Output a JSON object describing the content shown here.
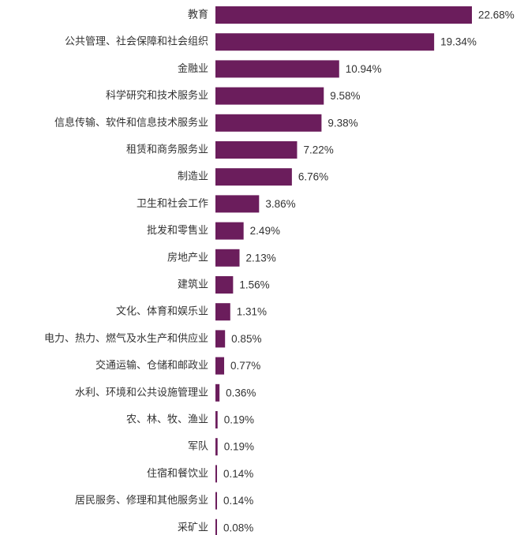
{
  "chart_data": {
    "type": "bar",
    "orientation": "horizontal",
    "bar_color": "#6B1D5C",
    "categories": [
      "教育",
      "公共管理、社会保障和社会组织",
      "金融业",
      "科学研究和技术服务业",
      "信息传输、软件和信息技术服务业",
      "租赁和商务服务业",
      "制造业",
      "卫生和社会工作",
      "批发和零售业",
      "房地产业",
      "建筑业",
      "文化、体育和娱乐业",
      "电力、热力、燃气及水生产和供应业",
      "交通运输、仓储和邮政业",
      "水利、环境和公共设施管理业",
      "农、林、牧、渔业",
      "军队",
      "住宿和餐饮业",
      "居民服务、修理和其他服务业",
      "采矿业"
    ],
    "values": [
      22.68,
      19.34,
      10.94,
      9.58,
      9.38,
      7.22,
      6.76,
      3.86,
      2.49,
      2.13,
      1.56,
      1.31,
      0.85,
      0.77,
      0.36,
      0.19,
      0.19,
      0.14,
      0.14,
      0.08
    ],
    "value_labels": [
      "22.68%",
      "19.34%",
      "10.94%",
      "9.58%",
      "9.38%",
      "7.22%",
      "6.76%",
      "3.86%",
      "2.49%",
      "2.13%",
      "1.56%",
      "1.31%",
      "0.85%",
      "0.77%",
      "0.36%",
      "0.19%",
      "0.19%",
      "0.14%",
      "0.14%",
      "0.08%"
    ],
    "unit": "%",
    "grid": false,
    "legend": "none"
  }
}
